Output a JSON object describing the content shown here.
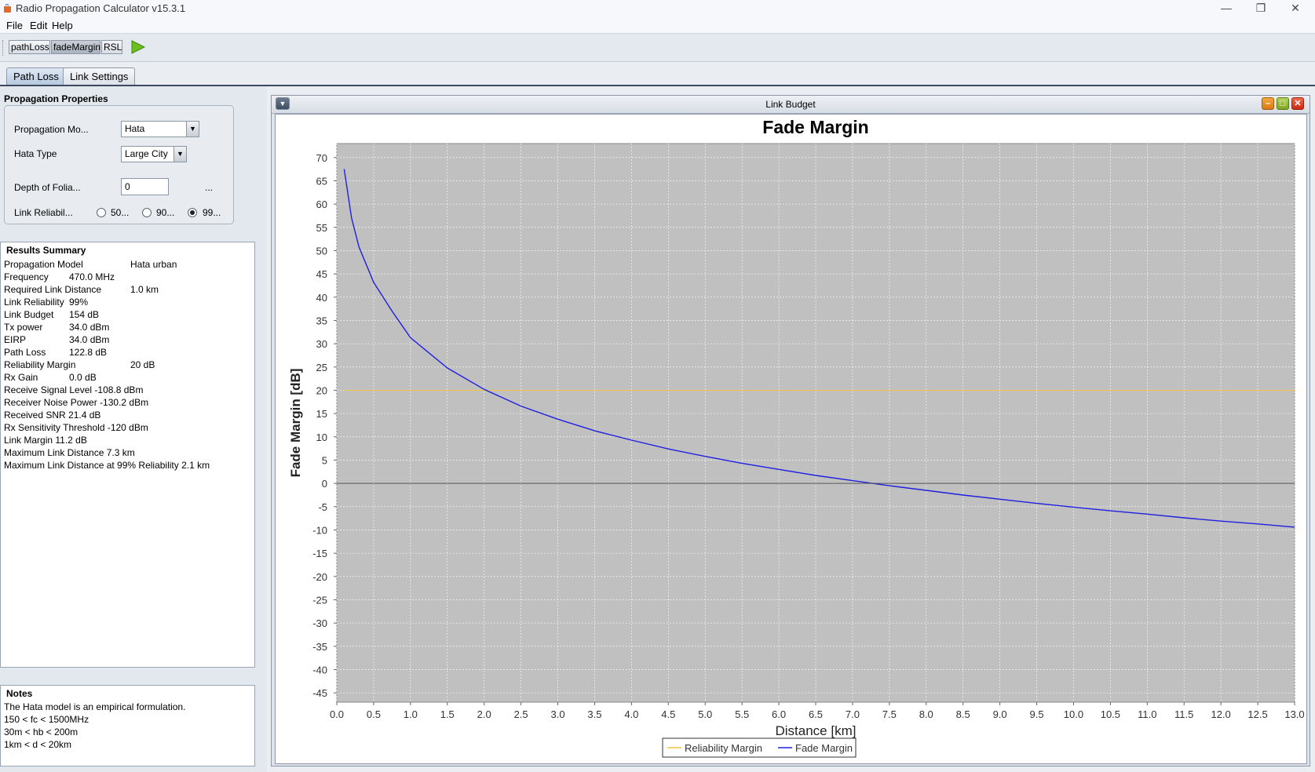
{
  "window": {
    "title": "Radio Propagation Calculator v15.3.1"
  },
  "menu": [
    "File",
    "Edit",
    "Help"
  ],
  "toolbar": {
    "buttons": [
      "pathLoss",
      "fadeMargin",
      "RSL"
    ],
    "active": "fadeMargin",
    "run_icon": "play-icon"
  },
  "tabs": [
    "Path Loss",
    "Link Settings"
  ],
  "active_tab": "Path Loss",
  "propagation": {
    "title": "Propagation Properties",
    "model_label": "Propagation Mo...",
    "model_value": "Hata",
    "hata_type_label": "Hata Type",
    "hata_type_value": "Large City",
    "foliage_label": "Depth of Folia...",
    "foliage_value": "0",
    "foliage_more": "...",
    "reliability_label": "Link Reliabil...",
    "reliability_options": [
      "50...",
      "90...",
      "99..."
    ],
    "reliability_selected": 2
  },
  "results": {
    "title": "Results Summary",
    "rows": [
      [
        "Propagation Model",
        "Hata urban"
      ],
      [
        "Frequency",
        "470.0 MHz"
      ],
      [
        "Required Link Distance",
        "1.0 km"
      ],
      [
        "Link Reliability",
        "99%"
      ],
      [
        "Link Budget",
        "154 dB"
      ],
      [
        "Tx power",
        "34.0 dBm"
      ],
      [
        "EIRP",
        "34.0 dBm"
      ],
      [
        "Path Loss",
        "122.8 dB"
      ],
      [
        "Reliability Margin",
        "20 dB"
      ],
      [
        "Rx Gain",
        "0.0 dB"
      ]
    ],
    "lines": [
      "Receive Signal Level -108.8 dBm",
      "Receiver Noise Power -130.2 dBm",
      "Received SNR 21.4 dB",
      "Rx Sensitivity Threshold -120 dBm",
      "Link Margin 11.2 dB",
      "Maximum Link Distance 7.3 km",
      "Maximum Link Distance at 99% Reliability 2.1 km"
    ]
  },
  "notes": {
    "title": "Notes",
    "lines": [
      "The Hata model is an empirical formulation.",
      "150 < fc < 1500MHz",
      "30m < hb < 200m",
      "1km < d < 20km"
    ]
  },
  "frame": {
    "title": "Link Budget"
  },
  "chart_data": {
    "type": "line",
    "title": "Fade Margin",
    "xlabel": "Distance [km]",
    "ylabel": "Fade Margin [dB]",
    "xlim": [
      0,
      13
    ],
    "ylim": [
      -47,
      73
    ],
    "x_ticks": [
      "0.0",
      "0.5",
      "1.0",
      "1.5",
      "2.0",
      "2.5",
      "3.0",
      "3.5",
      "4.0",
      "4.5",
      "5.0",
      "5.5",
      "6.0",
      "6.5",
      "7.0",
      "7.5",
      "8.0",
      "8.5",
      "9.0",
      "9.5",
      "10.0",
      "10.5",
      "11.0",
      "11.5",
      "12.0",
      "12.5",
      "13.0"
    ],
    "y_ticks": [
      "70",
      "65",
      "60",
      "55",
      "50",
      "45",
      "40",
      "35",
      "30",
      "25",
      "20",
      "15",
      "10",
      "5",
      "0",
      "-5",
      "-10",
      "-15",
      "-20",
      "-25",
      "-30",
      "-35",
      "-40",
      "-45"
    ],
    "grid": true,
    "legend_position": "bottom",
    "plot_background": "#c0c0c0",
    "series": [
      {
        "name": "Reliability Margin",
        "color": "#f2c53d",
        "x": [
          0.1,
          13.0
        ],
        "y": [
          20,
          20
        ]
      },
      {
        "name": "Fade Margin",
        "color": "#1f1fe0",
        "x": [
          0.1,
          0.2,
          0.3,
          0.5,
          0.75,
          1.0,
          1.5,
          2.0,
          2.5,
          3.0,
          3.5,
          4.0,
          4.5,
          5.0,
          5.5,
          6.0,
          6.5,
          7.0,
          7.5,
          8.0,
          8.5,
          9.0,
          9.5,
          10.0,
          10.5,
          11.0,
          11.5,
          12.0,
          12.5,
          13.0
        ],
        "y": [
          67.5,
          57.0,
          50.8,
          43.2,
          37.0,
          31.3,
          24.8,
          20.2,
          16.6,
          13.8,
          11.3,
          9.3,
          7.4,
          5.8,
          4.3,
          3.0,
          1.7,
          0.6,
          -0.5,
          -1.5,
          -2.5,
          -3.4,
          -4.3,
          -5.1,
          -5.9,
          -6.6,
          -7.4,
          -8.1,
          -8.7,
          -9.4
        ]
      },
      {
        "name": "",
        "color": "#555555",
        "x": [
          0,
          13
        ],
        "y": [
          0,
          0
        ]
      }
    ]
  },
  "colors": {
    "fade_margin": "#1f1fe0",
    "reliability_margin": "#f2c53d",
    "run_icon": "#6dbf1f"
  }
}
